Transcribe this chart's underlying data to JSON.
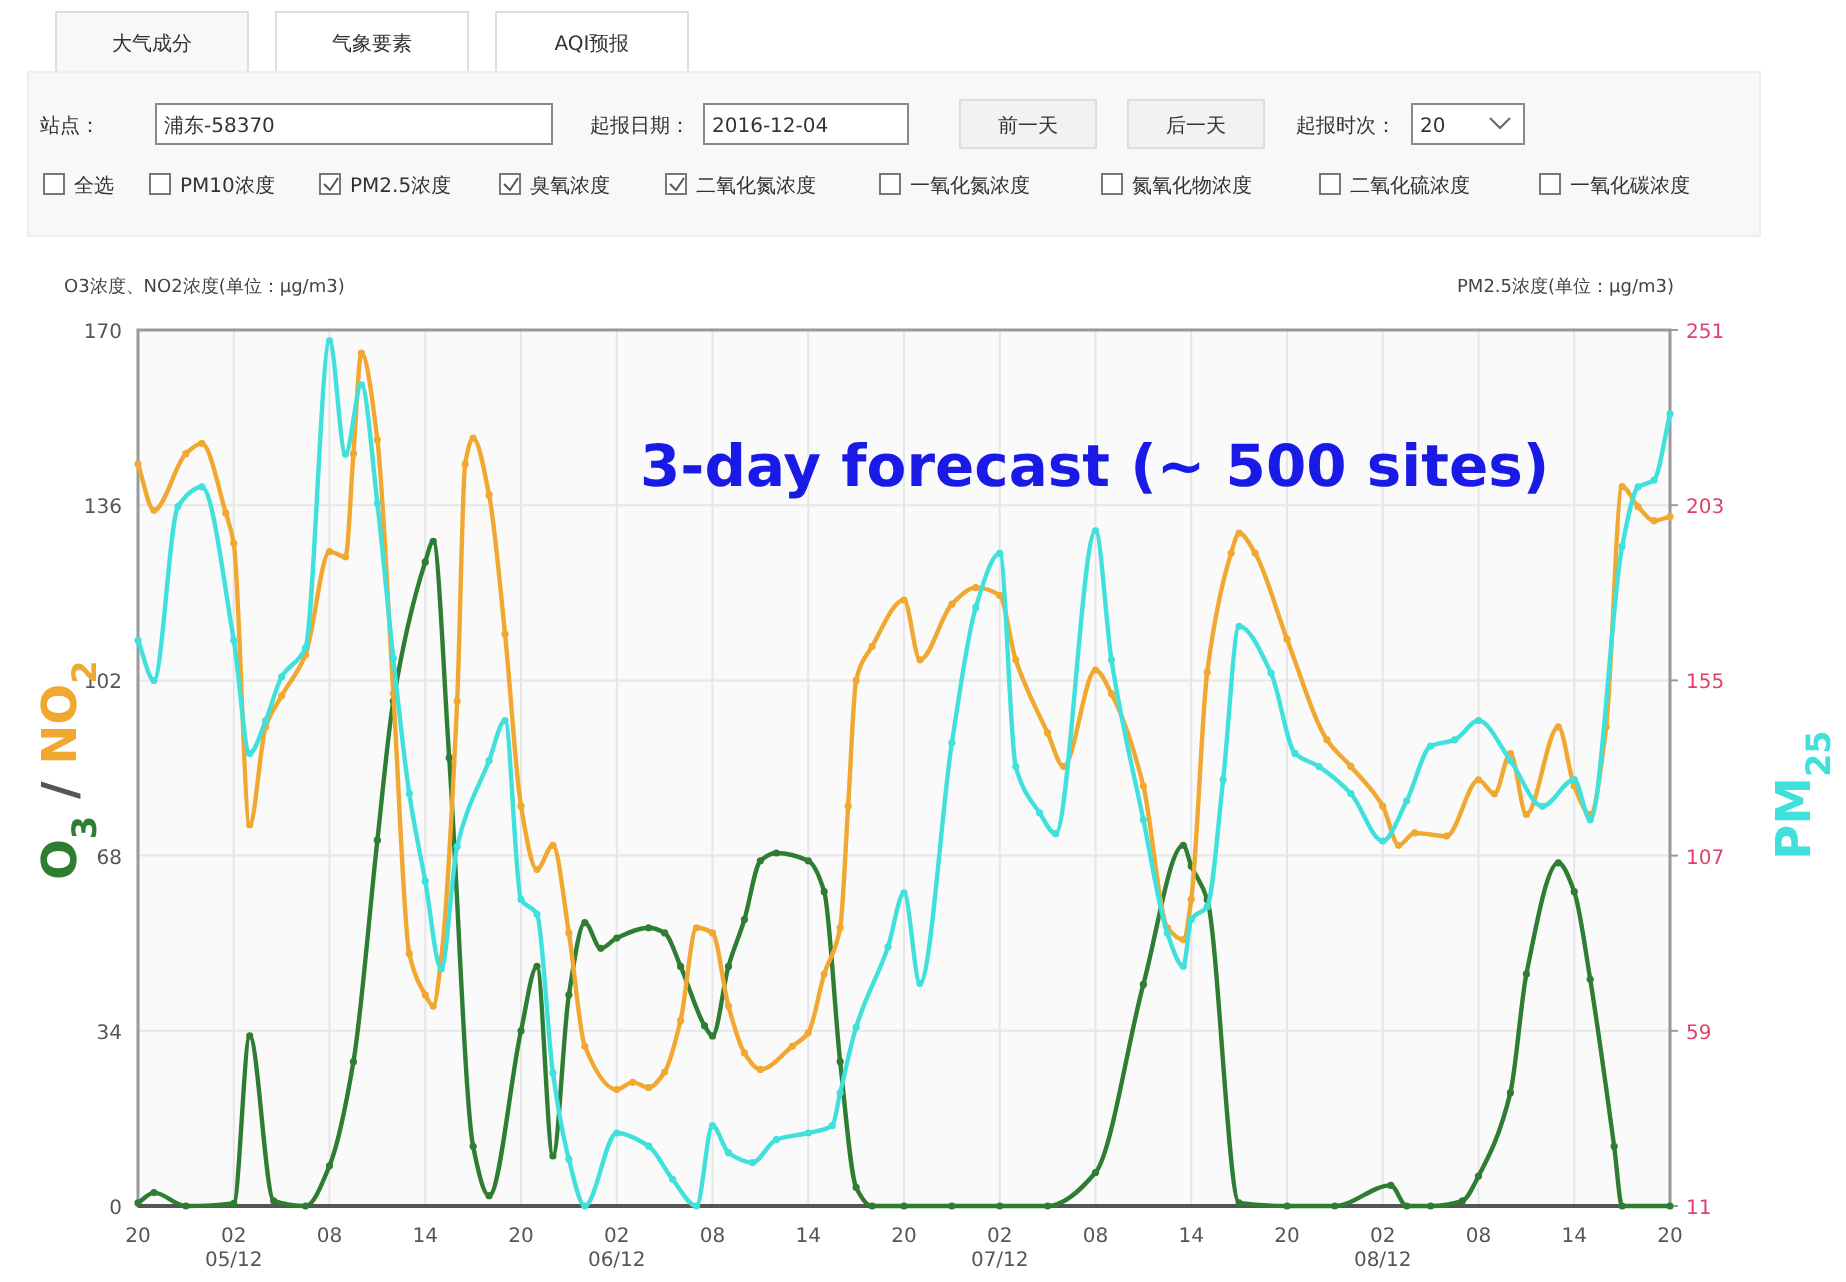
{
  "chart_data": {
    "type": "line",
    "title": "3-day forecast (~ 500 sites)",
    "ylabel": "O3浓度、NO2浓度(单位：μg/m3)",
    "y2label": "PM2.5浓度(单位：μg/m3)",
    "annotations": [
      "/",
      "大气成分",
      "气象要素",
      "AQI预报",
      "站点：",
      "浦东-58370",
      "起报日期：",
      "2016-12-04",
      "前一天",
      "后一天",
      "起报时次：",
      "20",
      "全选",
      "PM10浓度",
      "PM2.5浓度",
      "臭氧浓度",
      "二氧化氮浓度",
      "一氧化氮浓度",
      "氮氧化物浓度",
      "二氧化硫浓度",
      "一氧化碳浓度"
    ],
    "xlim": [
      "2016-12-04T20:00",
      "2016-12-08T20:00"
    ],
    "xticks": [
      {
        "value": "2016-12-04T20:00",
        "label": "20"
      },
      {
        "value": "2016-12-05T02:00",
        "label": "02\n05/12"
      },
      {
        "value": "2016-12-05T08:00",
        "label": "08"
      },
      {
        "value": "2016-12-05T14:00",
        "label": "14"
      },
      {
        "value": "2016-12-05T20:00",
        "label": "20"
      },
      {
        "value": "2016-12-06T02:00",
        "label": "02\n06/12"
      },
      {
        "value": "2016-12-06T08:00",
        "label": "08"
      },
      {
        "value": "2016-12-06T14:00",
        "label": "14"
      },
      {
        "value": "2016-12-06T20:00",
        "label": "20"
      },
      {
        "value": "2016-12-07T02:00",
        "label": "02\n07/12"
      },
      {
        "value": "2016-12-07T08:00",
        "label": "08"
      },
      {
        "value": "2016-12-07T14:00",
        "label": "14"
      },
      {
        "value": "2016-12-07T20:00",
        "label": "20"
      },
      {
        "value": "2016-12-08T02:00",
        "label": "02\n08/12"
      },
      {
        "value": "2016-12-08T08:00",
        "label": "08"
      },
      {
        "value": "2016-12-08T14:00",
        "label": "14"
      },
      {
        "value": "2016-12-08T20:00",
        "label": "20"
      }
    ],
    "ylim": [
      0,
      170
    ],
    "yticks": [
      0,
      34,
      68,
      102,
      136,
      170
    ],
    "y2lim": [
      11,
      251
    ],
    "y2ticks": [
      11,
      59,
      107,
      155,
      203,
      251
    ],
    "grid": true,
    "marker": "circle",
    "line_style": "solid",
    "series": [
      {
        "name": "O$_{3}$",
        "color": "#2e7d32",
        "x": [
          "2016-12-04T20:00",
          "2016-12-04T21:00",
          "2016-12-04T23:00",
          "2016-12-05T02:00",
          "2016-12-05T03:00",
          "2016-12-05T04:30",
          "2016-12-05T06:30",
          "2016-12-05T08:00",
          "2016-12-05T09:30",
          "2016-12-05T11:00",
          "2016-12-05T12:00",
          "2016-12-05T14:00",
          "2016-12-05T14:30",
          "2016-12-05T15:30",
          "2016-12-05T17:00",
          "2016-12-05T18:00",
          "2016-12-05T20:00",
          "2016-12-05T21:00",
          "2016-12-05T22:00",
          "2016-12-05T23:00",
          "2016-12-06T00:00",
          "2016-12-06T01:00",
          "2016-12-06T02:00",
          "2016-12-06T04:00",
          "2016-12-06T05:00",
          "2016-12-06T06:00",
          "2016-12-06T07:30",
          "2016-12-06T08:00",
          "2016-12-06T09:00",
          "2016-12-06T10:00",
          "2016-12-06T11:00",
          "2016-12-06T12:00",
          "2016-12-06T14:00",
          "2016-12-06T15:00",
          "2016-12-06T16:00",
          "2016-12-06T17:00",
          "2016-12-06T18:00",
          "2016-12-06T20:00",
          "2016-12-06T23:00",
          "2016-12-07T02:00",
          "2016-12-07T05:00",
          "2016-12-07T08:00",
          "2016-12-07T11:00",
          "2016-12-07T13:30",
          "2016-12-07T14:00",
          "2016-12-07T15:00",
          "2016-12-07T17:00",
          "2016-12-07T20:00",
          "2016-12-07T23:00",
          "2016-12-08T02:30",
          "2016-12-08T03:30",
          "2016-12-08T05:00",
          "2016-12-08T07:00",
          "2016-12-08T08:00",
          "2016-12-08T10:00",
          "2016-12-08T11:00",
          "2016-12-08T13:00",
          "2016-12-08T14:00",
          "2016-12-08T15:00",
          "2016-12-08T16:30",
          "2016-12-08T17:00",
          "2016-12-08T20:00"
        ],
        "values": [
          0.6,
          2.6,
          0,
          0.5,
          33,
          1,
          0,
          7.8,
          28,
          71,
          98,
          125,
          129,
          87,
          11.6,
          2,
          34,
          46.5,
          9.7,
          41,
          55,
          50,
          52,
          54,
          53,
          46.5,
          35,
          33,
          46.5,
          55.6,
          67,
          68.5,
          67,
          61,
          28,
          3.6,
          0,
          0,
          0,
          0,
          0,
          6.5,
          43,
          70,
          66,
          59.5,
          0.6,
          0,
          0,
          4,
          0,
          0,
          1,
          5.8,
          22,
          45,
          66.6,
          61,
          44,
          11.6,
          0,
          0
        ]
      },
      {
        "name": "NO$_{2}$",
        "color": "#f0a830",
        "x": [
          "2016-12-04T20:00",
          "2016-12-04T21:00",
          "2016-12-04T23:00",
          "2016-12-05T00:00",
          "2016-12-05T01:30",
          "2016-12-05T02:00",
          "2016-12-05T03:00",
          "2016-12-05T04:00",
          "2016-12-05T05:00",
          "2016-12-05T06:30",
          "2016-12-05T08:00",
          "2016-12-05T09:00",
          "2016-12-05T09:30",
          "2016-12-05T10:00",
          "2016-12-05T11:00",
          "2016-12-05T12:00",
          "2016-12-05T13:00",
          "2016-12-05T14:00",
          "2016-12-05T14:30",
          "2016-12-05T15:00",
          "2016-12-05T16:00",
          "2016-12-05T16:30",
          "2016-12-05T17:00",
          "2016-12-05T18:00",
          "2016-12-05T19:00",
          "2016-12-05T20:00",
          "2016-12-05T21:00",
          "2016-12-05T22:00",
          "2016-12-05T23:00",
          "2016-12-06T00:00",
          "2016-12-06T02:00",
          "2016-12-06T03:00",
          "2016-12-06T04:00",
          "2016-12-06T05:00",
          "2016-12-06T06:00",
          "2016-12-06T07:00",
          "2016-12-06T08:00",
          "2016-12-06T09:00",
          "2016-12-06T10:00",
          "2016-12-06T11:00",
          "2016-12-06T13:00",
          "2016-12-06T14:00",
          "2016-12-06T15:00",
          "2016-12-06T16:00",
          "2016-12-06T16:30",
          "2016-12-06T17:00",
          "2016-12-06T18:00",
          "2016-12-06T20:00",
          "2016-12-06T21:00",
          "2016-12-06T23:00",
          "2016-12-07T00:30",
          "2016-12-07T02:00",
          "2016-12-07T03:00",
          "2016-12-07T05:00",
          "2016-12-07T06:00",
          "2016-12-07T08:00",
          "2016-12-07T09:00",
          "2016-12-07T11:00",
          "2016-12-07T12:30",
          "2016-12-07T13:30",
          "2016-12-07T14:00",
          "2016-12-07T15:00",
          "2016-12-07T16:30",
          "2016-12-07T17:00",
          "2016-12-07T18:00",
          "2016-12-07T20:00",
          "2016-12-07T22:30",
          "2016-12-08T00:00",
          "2016-12-08T02:00",
          "2016-12-08T03:00",
          "2016-12-08T04:00",
          "2016-12-08T06:00",
          "2016-12-08T08:00",
          "2016-12-08T09:00",
          "2016-12-08T10:00",
          "2016-12-08T11:00",
          "2016-12-08T13:00",
          "2016-12-08T14:00",
          "2016-12-08T15:00",
          "2016-12-08T16:00",
          "2016-12-08T17:00",
          "2016-12-08T18:00",
          "2016-12-08T19:00",
          "2016-12-08T20:00"
        ],
        "values": [
          144,
          135,
          146,
          148,
          134.5,
          128.6,
          74,
          93,
          99,
          107,
          127,
          126,
          146,
          165.5,
          148.7,
          99.5,
          49,
          41,
          38.8,
          48,
          98,
          144,
          149,
          138,
          111,
          77.6,
          65.3,
          70,
          53,
          31,
          22.6,
          24,
          23,
          26,
          36,
          54,
          53,
          38.8,
          29.7,
          26.5,
          31,
          33.6,
          45,
          54,
          77.6,
          102,
          108.6,
          117.6,
          106,
          116.8,
          120,
          118.5,
          106,
          91.8,
          85.3,
          104,
          99.4,
          81.5,
          54,
          51.7,
          59.5,
          103.6,
          126.7,
          130.6,
          126.7,
          110,
          90.5,
          85.3,
          77.6,
          70,
          72.4,
          71.8,
          82.7,
          80,
          87.8,
          76,
          93,
          81.5,
          76,
          93,
          139.6,
          135.7,
          133,
          133.8
        ]
      },
      {
        "name": "PM$_{25}$",
        "color": "#40e0dc",
        "axis": "y2",
        "x": [
          "2016-12-04T20:00",
          "2016-12-04T21:00",
          "2016-12-04T22:30",
          "2016-12-05T00:00",
          "2016-12-05T02:00",
          "2016-12-05T03:00",
          "2016-12-05T04:00",
          "2016-12-05T05:00",
          "2016-12-05T06:30",
          "2016-12-05T08:00",
          "2016-12-05T09:00",
          "2016-12-05T10:00",
          "2016-12-05T11:00",
          "2016-12-05T12:00",
          "2016-12-05T13:00",
          "2016-12-05T14:00",
          "2016-12-05T15:00",
          "2016-12-05T16:00",
          "2016-12-05T18:00",
          "2016-12-05T19:00",
          "2016-12-05T20:00",
          "2016-12-05T21:00",
          "2016-12-05T22:00",
          "2016-12-05T23:00",
          "2016-12-06T00:00",
          "2016-12-06T02:00",
          "2016-12-06T04:00",
          "2016-12-06T05:30",
          "2016-12-06T07:00",
          "2016-12-06T08:00",
          "2016-12-06T09:00",
          "2016-12-06T10:30",
          "2016-12-06T12:00",
          "2016-12-06T14:00",
          "2016-12-06T15:30",
          "2016-12-06T16:00",
          "2016-12-06T17:00",
          "2016-12-06T19:00",
          "2016-12-06T20:00",
          "2016-12-06T21:00",
          "2016-12-06T23:00",
          "2016-12-07T00:30",
          "2016-12-07T02:00",
          "2016-12-07T03:00",
          "2016-12-07T04:30",
          "2016-12-07T05:30",
          "2016-12-07T08:00",
          "2016-12-07T09:00",
          "2016-12-07T11:00",
          "2016-12-07T12:30",
          "2016-12-07T13:30",
          "2016-12-07T14:00",
          "2016-12-07T15:00",
          "2016-12-07T16:00",
          "2016-12-07T17:00",
          "2016-12-07T19:00",
          "2016-12-07T20:30",
          "2016-12-07T22:00",
          "2016-12-08T00:00",
          "2016-12-08T02:00",
          "2016-12-08T03:30",
          "2016-12-08T05:00",
          "2016-12-08T06:30",
          "2016-12-08T08:00",
          "2016-12-08T10:00",
          "2016-12-08T12:00",
          "2016-12-08T14:00",
          "2016-12-08T15:00",
          "2016-12-08T17:00",
          "2016-12-08T18:00",
          "2016-12-08T19:00",
          "2016-12-08T20:00"
        ],
        "values": [
          166,
          155,
          202.6,
          208,
          166,
          135,
          144,
          156,
          164,
          248,
          217,
          236,
          203.5,
          161,
          124,
          100,
          76,
          109.5,
          133,
          144,
          95,
          91,
          47.5,
          23.8,
          11,
          31,
          27.4,
          18.3,
          11,
          33,
          25.6,
          22.9,
          29.2,
          31,
          33,
          42,
          60,
          82,
          96.8,
          72,
          137.9,
          175,
          189.8,
          131.4,
          118.7,
          113,
          196,
          160.6,
          116.8,
          85.8,
          76.7,
          89.5,
          93,
          127.8,
          169.8,
          157,
          135,
          131.4,
          124,
          111,
          122,
          137,
          138.7,
          144,
          133,
          120.5,
          127.8,
          116.8,
          191.7,
          208,
          209.9,
          228
        ]
      }
    ]
  }
}
